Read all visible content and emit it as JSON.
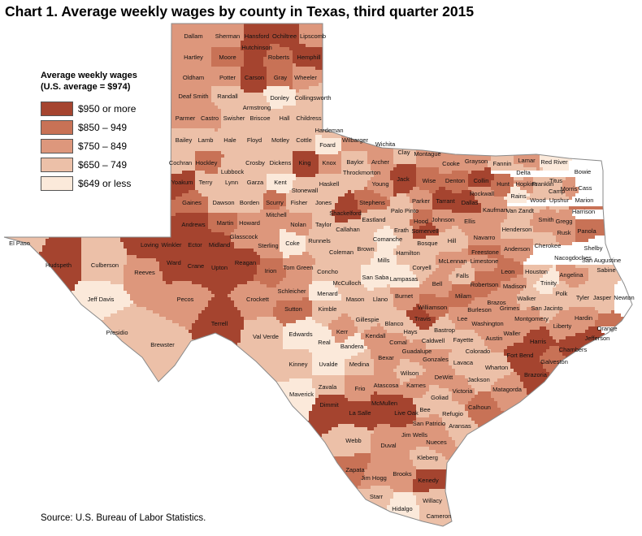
{
  "title": "Chart 1. Average weekly wages by county in Texas, third quarter 2015",
  "legend": {
    "title_line1": "Average weekly wages",
    "title_line2": "(U.S. average = $974)",
    "items": [
      {
        "label": "$950 or more",
        "color": "#a5442f"
      },
      {
        "label": "$850 – 949",
        "color": "#c87256"
      },
      {
        "label": "$750 – 849",
        "color": "#dd977c"
      },
      {
        "label": "$650 – 749",
        "color": "#ecc0a8"
      },
      {
        "label": "$649 or less",
        "color": "#fbe9da"
      }
    ]
  },
  "source": "Source: U.S. Bureau of Labor Statistics.",
  "counties": [
    {
      "name": "Dallam",
      "cls": 3
    },
    {
      "name": "Sherman",
      "cls": 3
    },
    {
      "name": "Hansford",
      "cls": 1
    },
    {
      "name": "Ochiltree",
      "cls": 1
    },
    {
      "name": "Lipscomb",
      "cls": 3
    },
    {
      "name": "Hartley",
      "cls": 3
    },
    {
      "name": "Moore",
      "cls": 2
    },
    {
      "name": "Hutchinson",
      "cls": 1
    },
    {
      "name": "Roberts",
      "cls": 2
    },
    {
      "name": "Hemphill",
      "cls": 1
    },
    {
      "name": "Oldham",
      "cls": 3
    },
    {
      "name": "Potter",
      "cls": 3
    },
    {
      "name": "Carson",
      "cls": 1
    },
    {
      "name": "Gray",
      "cls": 2
    },
    {
      "name": "Wheeler",
      "cls": 3
    },
    {
      "name": "Deaf Smith",
      "cls": 3
    },
    {
      "name": "Randall",
      "cls": 4
    },
    {
      "name": "Armstrong",
      "cls": 4
    },
    {
      "name": "Donley",
      "cls": 5
    },
    {
      "name": "Collingsworth",
      "cls": 4
    },
    {
      "name": "Parmer",
      "cls": 3
    },
    {
      "name": "Castro",
      "cls": 3
    },
    {
      "name": "Swisher",
      "cls": 4
    },
    {
      "name": "Briscoe",
      "cls": 4
    },
    {
      "name": "Hall",
      "cls": 4
    },
    {
      "name": "Childress",
      "cls": 4
    },
    {
      "name": "Hardeman",
      "cls": 4
    },
    {
      "name": "Wilbarger",
      "cls": 3
    },
    {
      "name": "Wichita",
      "cls": 3
    },
    {
      "name": "Clay",
      "cls": 4
    },
    {
      "name": "Montague",
      "cls": 3
    },
    {
      "name": "Cooke",
      "cls": 3
    },
    {
      "name": "Grayson",
      "cls": 3
    },
    {
      "name": "Fannin",
      "cls": 4
    },
    {
      "name": "Lamar",
      "cls": 3
    },
    {
      "name": "Red River",
      "cls": 5
    },
    {
      "name": "Bowie",
      "cls": 4
    },
    {
      "name": "Cass",
      "cls": 4
    },
    {
      "name": "Delta",
      "cls": 4
    },
    {
      "name": "Titus",
      "cls": 4
    },
    {
      "name": "Franklin",
      "cls": 4
    },
    {
      "name": "Camp",
      "cls": 4
    },
    {
      "name": "Morris",
      "cls": 3
    },
    {
      "name": "Hopkins",
      "cls": 3
    },
    {
      "name": "Bailey",
      "cls": 4
    },
    {
      "name": "Lamb",
      "cls": 4
    },
    {
      "name": "Hale",
      "cls": 4
    },
    {
      "name": "Floyd",
      "cls": 4
    },
    {
      "name": "Motley",
      "cls": 4
    },
    {
      "name": "Cottle",
      "cls": 4
    },
    {
      "name": "Foard",
      "cls": 5
    },
    {
      "name": "Cochran",
      "cls": 4
    },
    {
      "name": "Hockley",
      "cls": 2
    },
    {
      "name": "Lubbock",
      "cls": 4
    },
    {
      "name": "Crosby",
      "cls": 4
    },
    {
      "name": "Dickens",
      "cls": 4
    },
    {
      "name": "King",
      "cls": 1
    },
    {
      "name": "Knox",
      "cls": 3
    },
    {
      "name": "Baylor",
      "cls": 4
    },
    {
      "name": "Archer",
      "cls": 3
    },
    {
      "name": "Throckmorton",
      "cls": 4
    },
    {
      "name": "Young",
      "cls": 3
    },
    {
      "name": "Jack",
      "cls": 1
    },
    {
      "name": "Wise",
      "cls": 2
    },
    {
      "name": "Denton",
      "cls": 2
    },
    {
      "name": "Collin",
      "cls": 1
    },
    {
      "name": "Hunt",
      "cls": 2
    },
    {
      "name": "Rockwall",
      "cls": 3
    },
    {
      "name": "Rains",
      "cls": 5
    },
    {
      "name": "Wood",
      "cls": 4
    },
    {
      "name": "Upshur",
      "cls": 4
    },
    {
      "name": "Marion",
      "cls": 4
    },
    {
      "name": "Yoakum",
      "cls": 1
    },
    {
      "name": "Terry",
      "cls": 4
    },
    {
      "name": "Lynn",
      "cls": 4
    },
    {
      "name": "Garza",
      "cls": 4
    },
    {
      "name": "Kent",
      "cls": 5
    },
    {
      "name": "Stonewall",
      "cls": 4
    },
    {
      "name": "Haskell",
      "cls": 4
    },
    {
      "name": "Gaines",
      "cls": 2
    },
    {
      "name": "Dawson",
      "cls": 4
    },
    {
      "name": "Borden",
      "cls": 4
    },
    {
      "name": "Scurry",
      "cls": 2
    },
    {
      "name": "Fisher",
      "cls": 4
    },
    {
      "name": "Jones",
      "cls": 4
    },
    {
      "name": "Shackelford",
      "cls": 1
    },
    {
      "name": "Stephens",
      "cls": 2
    },
    {
      "name": "Palo Pinto",
      "cls": 4
    },
    {
      "name": "Parker",
      "cls": 3
    },
    {
      "name": "Tarrant",
      "cls": 1
    },
    {
      "name": "Dallas",
      "cls": 1
    },
    {
      "name": "Kaufman",
      "cls": 3
    },
    {
      "name": "Van Zandt",
      "cls": 4
    },
    {
      "name": "Smith",
      "cls": 3
    },
    {
      "name": "Gregg",
      "cls": 3
    },
    {
      "name": "Harrison",
      "cls": 2
    },
    {
      "name": "Rusk",
      "cls": 3
    },
    {
      "name": "Panola",
      "cls": 2
    },
    {
      "name": "Andrews",
      "cls": 1
    },
    {
      "name": "Martin",
      "cls": 2
    },
    {
      "name": "Howard",
      "cls": 3
    },
    {
      "name": "Mitchell",
      "cls": 3
    },
    {
      "name": "Nolan",
      "cls": 3
    },
    {
      "name": "Taylor",
      "cls": 4
    },
    {
      "name": "Callahan",
      "cls": 4
    },
    {
      "name": "Eastland",
      "cls": 4
    },
    {
      "name": "Erath",
      "cls": 4
    },
    {
      "name": "Hood",
      "cls": 2
    },
    {
      "name": "Somervell",
      "cls": 1
    },
    {
      "name": "Johnson",
      "cls": 3
    },
    {
      "name": "Ellis",
      "cls": 3
    },
    {
      "name": "Henderson",
      "cls": 4
    },
    {
      "name": "Navarro",
      "cls": 3
    },
    {
      "name": "Cherokee",
      "cls": 4
    },
    {
      "name": "Shelby",
      "cls": 4
    },
    {
      "name": "Nacogdoches",
      "cls": 4
    },
    {
      "name": "San Augustine",
      "cls": 4
    },
    {
      "name": "Sabine",
      "cls": 4
    },
    {
      "name": "El Paso",
      "cls": 4
    },
    {
      "name": "Hudspeth",
      "cls": 1
    },
    {
      "name": "Culberson",
      "cls": 4
    },
    {
      "name": "Loving",
      "cls": 1
    },
    {
      "name": "Winkler",
      "cls": 1
    },
    {
      "name": "Ector",
      "cls": 1
    },
    {
      "name": "Midland",
      "cls": 1
    },
    {
      "name": "Glasscock",
      "cls": 3
    },
    {
      "name": "Sterling",
      "cls": 3
    },
    {
      "name": "Coke",
      "cls": 5
    },
    {
      "name": "Runnels",
      "cls": 4
    },
    {
      "name": "Coleman",
      "cls": 4
    },
    {
      "name": "Brown",
      "cls": 4
    },
    {
      "name": "Comanche",
      "cls": 5
    },
    {
      "name": "Hamilton",
      "cls": 4
    },
    {
      "name": "Bosque",
      "cls": 4
    },
    {
      "name": "Hill",
      "cls": 4
    },
    {
      "name": "Freestone",
      "cls": 2
    },
    {
      "name": "Anderson",
      "cls": 3
    },
    {
      "name": "Limestone",
      "cls": 3
    },
    {
      "name": "McLennan",
      "cls": 3
    },
    {
      "name": "Ward",
      "cls": 1
    },
    {
      "name": "Crane",
      "cls": 1
    },
    {
      "name": "Upton",
      "cls": 1
    },
    {
      "name": "Reagan",
      "cls": 1
    },
    {
      "name": "Irion",
      "cls": 2
    },
    {
      "name": "Tom Green",
      "cls": 3
    },
    {
      "name": "Concho",
      "cls": 4
    },
    {
      "name": "McCulloch",
      "cls": 4
    },
    {
      "name": "Mills",
      "cls": 5
    },
    {
      "name": "San Saba",
      "cls": 5
    },
    {
      "name": "Lampasas",
      "cls": 5
    },
    {
      "name": "Coryell",
      "cls": 4
    },
    {
      "name": "Bell",
      "cls": 3
    },
    {
      "name": "Falls",
      "cls": 4
    },
    {
      "name": "Leon",
      "cls": 2
    },
    {
      "name": "Houston",
      "cls": 4
    },
    {
      "name": "Angelina",
      "cls": 3
    },
    {
      "name": "Trinity",
      "cls": 5
    },
    {
      "name": "Polk",
      "cls": 4
    },
    {
      "name": "Tyler",
      "cls": 4
    },
    {
      "name": "Jasper",
      "cls": 4
    },
    {
      "name": "Newton",
      "cls": 5
    },
    {
      "name": "Reeves",
      "cls": 3
    },
    {
      "name": "Jeff Davis",
      "cls": 5
    },
    {
      "name": "Pecos",
      "cls": 3
    },
    {
      "name": "Crockett",
      "cls": 3
    },
    {
      "name": "Schleicher",
      "cls": 3
    },
    {
      "name": "Sutton",
      "cls": 2
    },
    {
      "name": "Menard",
      "cls": 5
    },
    {
      "name": "Kimble",
      "cls": 4
    },
    {
      "name": "Mason",
      "cls": 4
    },
    {
      "name": "Llano",
      "cls": 4
    },
    {
      "name": "Burnet",
      "cls": 3
    },
    {
      "name": "Williamson",
      "cls": 2
    },
    {
      "name": "Milam",
      "cls": 2
    },
    {
      "name": "Robertson",
      "cls": 2
    },
    {
      "name": "Brazos",
      "cls": 3
    },
    {
      "name": "Madison",
      "cls": 3
    },
    {
      "name": "Walker",
      "cls": 4
    },
    {
      "name": "San Jacinto",
      "cls": 4
    },
    {
      "name": "Grimes",
      "cls": 3
    },
    {
      "name": "Montgomery",
      "cls": 3
    },
    {
      "name": "Liberty",
      "cls": 3
    },
    {
      "name": "Hardin",
      "cls": 3
    },
    {
      "name": "Orange",
      "cls": 2
    },
    {
      "name": "Jefferson",
      "cls": 1
    },
    {
      "name": "Presidio",
      "cls": 4
    },
    {
      "name": "Brewster",
      "cls": 4
    },
    {
      "name": "Terrell",
      "cls": 1
    },
    {
      "name": "Val Verde",
      "cls": 4
    },
    {
      "name": "Edwards",
      "cls": 5
    },
    {
      "name": "Real",
      "cls": 5
    },
    {
      "name": "Kerr",
      "cls": 3
    },
    {
      "name": "Gillespie",
      "cls": 4
    },
    {
      "name": "Blanco",
      "cls": 4
    },
    {
      "name": "Travis",
      "cls": 1
    },
    {
      "name": "Bastrop",
      "cls": 4
    },
    {
      "name": "Lee",
      "cls": 3
    },
    {
      "name": "Burleson",
      "cls": 3
    },
    {
      "name": "Washington",
      "cls": 3
    },
    {
      "name": "Waller",
      "cls": 3
    },
    {
      "name": "Harris",
      "cls": 1
    },
    {
      "name": "Chambers",
      "cls": 1
    },
    {
      "name": "Austin",
      "cls": 3
    },
    {
      "name": "Fort Bend",
      "cls": 1
    },
    {
      "name": "Galveston",
      "cls": 2
    },
    {
      "name": "Brazoria",
      "cls": 1
    },
    {
      "name": "Hays",
      "cls": 4
    },
    {
      "name": "Caldwell",
      "cls": 4
    },
    {
      "name": "Fayette",
      "cls": 4
    },
    {
      "name": "Colorado",
      "cls": 4
    },
    {
      "name": "Wharton",
      "cls": 4
    },
    {
      "name": "Matagorda",
      "cls": 3
    },
    {
      "name": "Kendall",
      "cls": 3
    },
    {
      "name": "Bandera",
      "cls": 5
    },
    {
      "name": "Comal",
      "cls": 3
    },
    {
      "name": "Guadalupe",
      "cls": 3
    },
    {
      "name": "Gonzales",
      "cls": 3
    },
    {
      "name": "Lavaca",
      "cls": 4
    },
    {
      "name": "Jackson",
      "cls": 4
    },
    {
      "name": "Bexar",
      "cls": 3
    },
    {
      "name": "Wilson",
      "cls": 4
    },
    {
      "name": "Karnes",
      "cls": 3
    },
    {
      "name": "DeWitt",
      "cls": 3
    },
    {
      "name": "Victoria",
      "cls": 3
    },
    {
      "name": "Calhoun",
      "cls": 2
    },
    {
      "name": "Goliad",
      "cls": 4
    },
    {
      "name": "Refugio",
      "cls": 4
    },
    {
      "name": "Kinney",
      "cls": 4
    },
    {
      "name": "Uvalde",
      "cls": 5
    },
    {
      "name": "Medina",
      "cls": 4
    },
    {
      "name": "Frio",
      "cls": 3
    },
    {
      "name": "Atascosa",
      "cls": 3
    },
    {
      "name": "Bee",
      "cls": 4
    },
    {
      "name": "Aransas",
      "cls": 4
    },
    {
      "name": "Zavala",
      "cls": 4
    },
    {
      "name": "Maverick",
      "cls": 5
    },
    {
      "name": "Dimmit",
      "cls": 1
    },
    {
      "name": "La Salle",
      "cls": 1
    },
    {
      "name": "McMullen",
      "cls": 1
    },
    {
      "name": "Live Oak",
      "cls": 1
    },
    {
      "name": "San Patricio",
      "cls": 3
    },
    {
      "name": "Jim Wells",
      "cls": 3
    },
    {
      "name": "Nueces",
      "cls": 3
    },
    {
      "name": "Webb",
      "cls": 4
    },
    {
      "name": "Duval",
      "cls": 3
    },
    {
      "name": "Kleberg",
      "cls": 4
    },
    {
      "name": "Zapata",
      "cls": 2
    },
    {
      "name": "Jim Hogg",
      "cls": 3
    },
    {
      "name": "Brooks",
      "cls": 3
    },
    {
      "name": "Kenedy",
      "cls": 1
    },
    {
      "name": "Starr",
      "cls": 4
    },
    {
      "name": "Hidalgo",
      "cls": 5
    },
    {
      "name": "Willacy",
      "cls": 4
    },
    {
      "name": "Cameron",
      "cls": 4
    }
  ]
}
